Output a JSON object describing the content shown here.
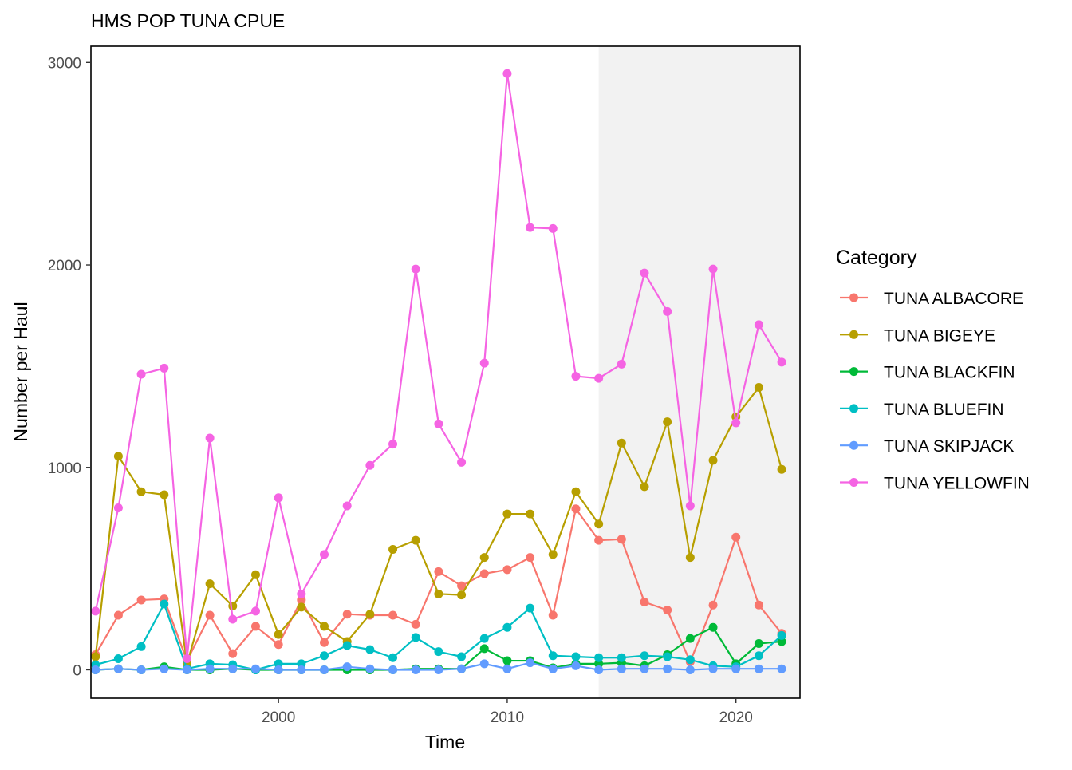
{
  "chart_data": {
    "type": "line",
    "title": "HMS POP TUNA CPUE",
    "xlabel": "Time",
    "ylabel": "Number per Haul",
    "xlim": [
      1991.8,
      2022.8
    ],
    "ylim": [
      -140,
      3080
    ],
    "x_ticks": [
      2000,
      2010,
      2020
    ],
    "y_ticks": [
      0,
      1000,
      2000,
      3000
    ],
    "grid": false,
    "shaded_region": {
      "x_start": 2014,
      "x_end": 2023,
      "color": "#f2f2f2"
    },
    "legend": {
      "title": "Category",
      "position": "right"
    },
    "x": [
      1992,
      1993,
      1994,
      1995,
      1996,
      1997,
      1998,
      1999,
      2000,
      2001,
      2002,
      2003,
      2004,
      2005,
      2006,
      2007,
      2008,
      2009,
      2010,
      2011,
      2012,
      2013,
      2014,
      2015,
      2016,
      2017,
      2018,
      2019,
      2020,
      2021,
      2022
    ],
    "series": [
      {
        "name": "TUNA ALBACORE",
        "color": "#F8766D",
        "values": [
          75,
          270,
          345,
          350,
          45,
          270,
          80,
          215,
          125,
          345,
          135,
          275,
          270,
          270,
          225,
          485,
          415,
          475,
          495,
          555,
          270,
          795,
          640,
          645,
          335,
          295,
          40,
          320,
          655,
          320,
          180
        ]
      },
      {
        "name": "TUNA BIGEYE",
        "color": "#B79F00",
        "values": [
          65,
          1055,
          880,
          865,
          30,
          425,
          315,
          470,
          175,
          310,
          215,
          140,
          275,
          595,
          640,
          375,
          370,
          555,
          770,
          770,
          570,
          880,
          720,
          1120,
          905,
          1225,
          555,
          1035,
          1250,
          1395,
          990
        ]
      },
      {
        "name": "TUNA BLACKFIN",
        "color": "#00BA38",
        "values": [
          0,
          5,
          0,
          15,
          0,
          0,
          5,
          0,
          0,
          0,
          0,
          0,
          0,
          0,
          5,
          5,
          5,
          105,
          45,
          45,
          10,
          30,
          30,
          35,
          20,
          75,
          155,
          210,
          30,
          130,
          140
        ]
      },
      {
        "name": "TUNA BLUEFIN",
        "color": "#00BFC4",
        "values": [
          25,
          55,
          115,
          325,
          5,
          30,
          25,
          0,
          30,
          30,
          70,
          120,
          100,
          60,
          160,
          90,
          65,
          155,
          210,
          305,
          70,
          65,
          60,
          60,
          70,
          65,
          50,
          20,
          15,
          70,
          170
        ]
      },
      {
        "name": "TUNA SKIPJACK",
        "color": "#619CFF",
        "values": [
          0,
          5,
          0,
          5,
          0,
          5,
          5,
          5,
          0,
          0,
          0,
          15,
          5,
          0,
          0,
          0,
          5,
          30,
          5,
          35,
          5,
          20,
          0,
          5,
          5,
          5,
          0,
          5,
          5,
          5,
          5
        ]
      },
      {
        "name": "TUNA YELLOWFIN",
        "color": "#F564E3",
        "values": [
          290,
          800,
          1460,
          1490,
          55,
          1145,
          250,
          290,
          850,
          375,
          570,
          810,
          1010,
          1115,
          1980,
          1215,
          1025,
          1515,
          2945,
          2185,
          2180,
          1450,
          1440,
          1510,
          1960,
          1770,
          810,
          1980,
          1220,
          1705,
          1520
        ]
      }
    ]
  }
}
